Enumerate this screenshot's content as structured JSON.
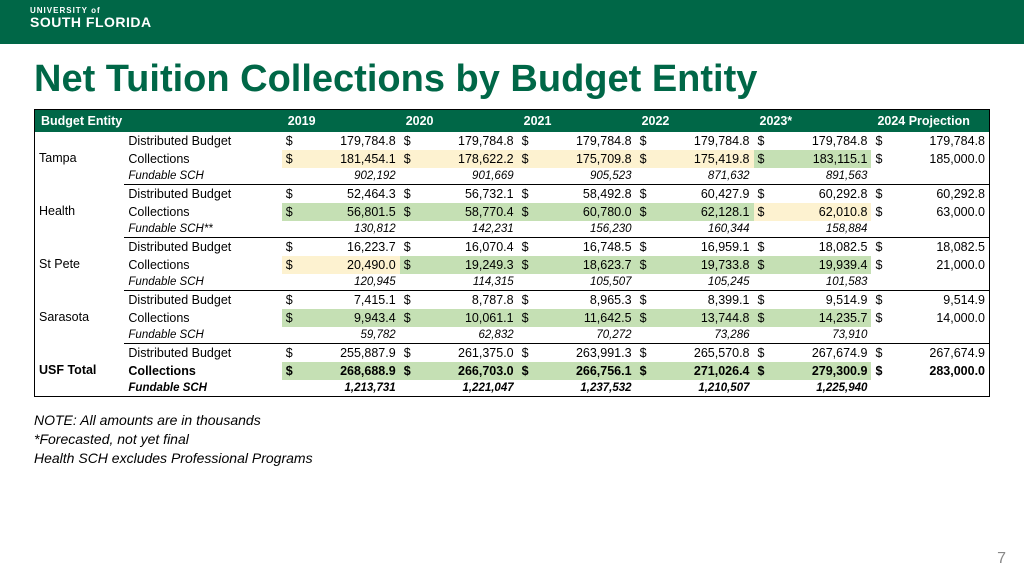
{
  "header": {
    "line1": "UNIVERSITY of",
    "line2": "SOUTH FLORIDA"
  },
  "title": "Net Tuition Collections by Budget Entity",
  "columns": {
    "entity": "Budget Entity",
    "years": [
      "2019",
      "2020",
      "2021",
      "2022",
      "2023*",
      "2024 Projection"
    ]
  },
  "labels": {
    "dist": "Distributed Budget",
    "coll": "Collections",
    "sch": "Fundable SCH",
    "sch2": "Fundable SCH**"
  },
  "entities": [
    {
      "name": "Tampa",
      "dist": [
        "179,784.8",
        "179,784.8",
        "179,784.8",
        "179,784.8",
        "179,784.8",
        "179,784.8"
      ],
      "coll": [
        "181,454.1",
        "178,622.2",
        "175,709.8",
        "175,419.8",
        "183,115.1",
        "185,000.0"
      ],
      "coll_hl": [
        "y",
        "y",
        "y",
        "y",
        "g",
        ""
      ],
      "sch": [
        "902,192",
        "901,669",
        "905,523",
        "871,632",
        "891,563",
        ""
      ],
      "sch_label_key": "sch"
    },
    {
      "name": "Health",
      "dist": [
        "52,464.3",
        "56,732.1",
        "58,492.8",
        "60,427.9",
        "60,292.8",
        "60,292.8"
      ],
      "coll": [
        "56,801.5",
        "58,770.4",
        "60,780.0",
        "62,128.1",
        "62,010.8",
        "63,000.0"
      ],
      "coll_hl": [
        "g",
        "g",
        "g",
        "g",
        "y",
        ""
      ],
      "sch": [
        "130,812",
        "142,231",
        "156,230",
        "160,344",
        "158,884",
        ""
      ],
      "sch_label_key": "sch2"
    },
    {
      "name": "St Pete",
      "dist": [
        "16,223.7",
        "16,070.4",
        "16,748.5",
        "16,959.1",
        "18,082.5",
        "18,082.5"
      ],
      "coll": [
        "20,490.0",
        "19,249.3",
        "18,623.7",
        "19,733.8",
        "19,939.4",
        "21,000.0"
      ],
      "coll_hl": [
        "y",
        "g",
        "g",
        "g",
        "g",
        ""
      ],
      "sch": [
        "120,945",
        "114,315",
        "105,507",
        "105,245",
        "101,583",
        ""
      ],
      "sch_label_key": "sch"
    },
    {
      "name": "Sarasota",
      "dist": [
        "7,415.1",
        "8,787.8",
        "8,965.3",
        "8,399.1",
        "9,514.9",
        "9,514.9"
      ],
      "coll": [
        "9,943.4",
        "10,061.1",
        "11,642.5",
        "13,744.8",
        "14,235.7",
        "14,000.0"
      ],
      "coll_hl": [
        "g",
        "g",
        "g",
        "g",
        "g",
        ""
      ],
      "sch": [
        "59,782",
        "62,832",
        "70,272",
        "73,286",
        "73,910",
        ""
      ],
      "sch_label_key": "sch"
    }
  ],
  "total": {
    "name": "USF Total",
    "dist": [
      "255,887.9",
      "261,375.0",
      "263,991.3",
      "265,570.8",
      "267,674.9",
      "267,674.9"
    ],
    "coll": [
      "268,688.9",
      "266,703.0",
      "266,756.1",
      "271,026.4",
      "279,300.9",
      "283,000.0"
    ],
    "coll_hl": [
      "g",
      "g",
      "g",
      "g",
      "g",
      ""
    ],
    "sch": [
      "1,213,731",
      "1,221,047",
      "1,237,532",
      "1,210,507",
      "1,225,940",
      ""
    ]
  },
  "notes": [
    "NOTE: All amounts are in thousands",
    "*Forecasted, not yet final",
    "Health SCH excludes Professional Programs"
  ],
  "page": "7",
  "colors": {
    "brand": "#006747",
    "yellow": "#fdf2d0",
    "green": "#c5e0b4"
  }
}
